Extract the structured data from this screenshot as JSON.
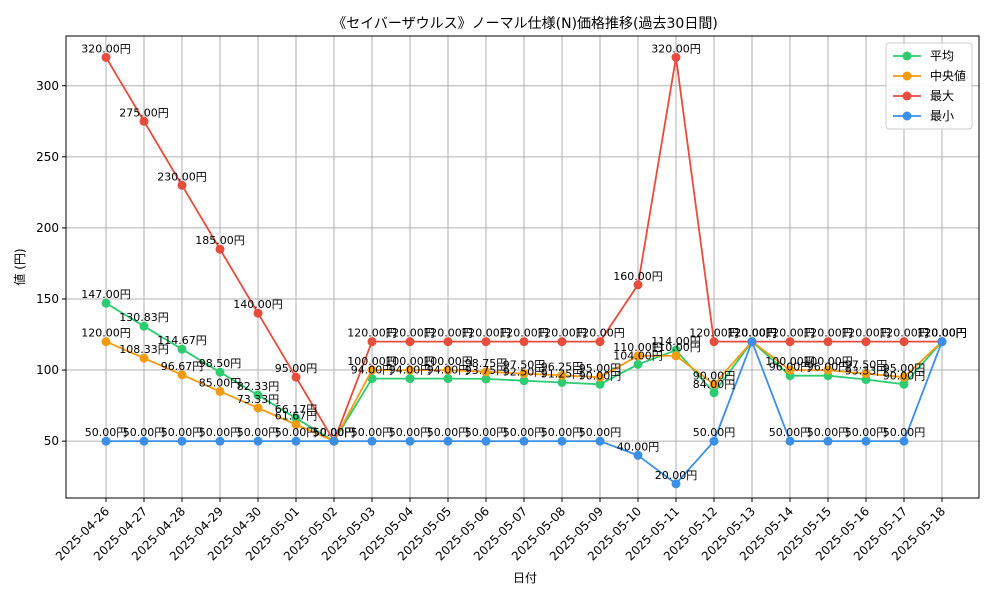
{
  "chart_data": {
    "type": "line",
    "title": "《セイバーザウルス》ノーマル仕様(N)価格推移(過去30日間)",
    "xlabel": "日付",
    "ylabel": "値 (円)",
    "ylim": [
      10,
      335
    ],
    "yticks": [
      50,
      100,
      150,
      200,
      250,
      300
    ],
    "grid": true,
    "legend_position": "top-right",
    "value_suffix": "円",
    "categories": [
      "2025-04-26",
      "2025-04-27",
      "2025-04-28",
      "2025-04-29",
      "2025-04-30",
      "2025-05-01",
      "2025-05-02",
      "2025-05-03",
      "2025-05-04",
      "2025-05-05",
      "2025-05-06",
      "2025-05-07",
      "2025-05-08",
      "2025-05-09",
      "2025-05-10",
      "2025-05-11",
      "2025-05-12",
      "2025-05-13",
      "2025-05-14",
      "2025-05-15",
      "2025-05-16",
      "2025-05-17",
      "2025-05-18"
    ],
    "series": [
      {
        "name": "平均",
        "color": "#2ecc71",
        "values": [
          147.0,
          130.83,
          114.67,
          98.5,
          82.33,
          66.17,
          50.0,
          94.0,
          94.0,
          94.0,
          93.75,
          92.5,
          91.25,
          90.0,
          104.0,
          114.0,
          84.0,
          120.0,
          96.0,
          96.0,
          93.33,
          90.0,
          120.0
        ]
      },
      {
        "name": "中央値",
        "color": "#f39c12",
        "values": [
          120.0,
          108.33,
          96.67,
          85.0,
          73.33,
          61.67,
          50.0,
          100.0,
          100.0,
          100.0,
          98.75,
          97.5,
          96.25,
          95.0,
          110.0,
          110.0,
          90.0,
          120.0,
          100.0,
          100.0,
          97.5,
          95.0,
          120.0
        ]
      },
      {
        "name": "最大",
        "color": "#e74c3c",
        "values": [
          320.0,
          275.0,
          230.0,
          185.0,
          140.0,
          95.0,
          50.0,
          120.0,
          120.0,
          120.0,
          120.0,
          120.0,
          120.0,
          120.0,
          160.0,
          320.0,
          120.0,
          120.0,
          120.0,
          120.0,
          120.0,
          120.0,
          120.0
        ]
      },
      {
        "name": "最小",
        "color": "#3b8fe8",
        "values": [
          50.0,
          50.0,
          50.0,
          50.0,
          50.0,
          50.0,
          50.0,
          50.0,
          50.0,
          50.0,
          50.0,
          50.0,
          50.0,
          50.0,
          40.0,
          20.0,
          50.0,
          120.0,
          50.0,
          50.0,
          50.0,
          50.0,
          120.0
        ]
      }
    ]
  }
}
